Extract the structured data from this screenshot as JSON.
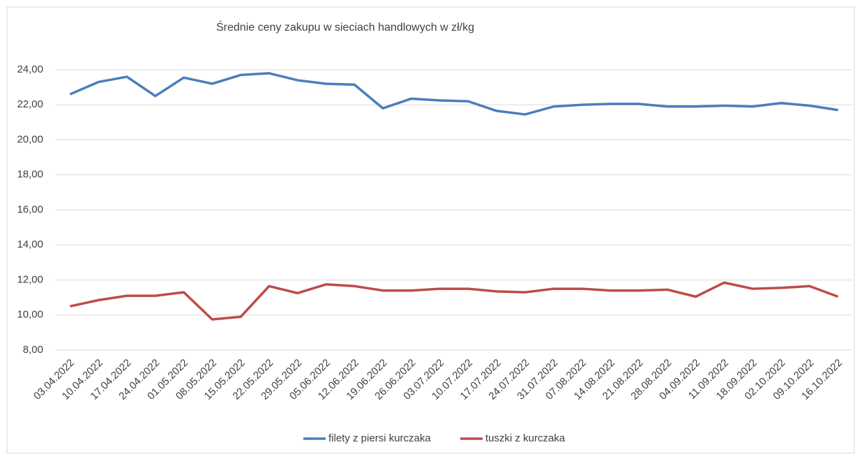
{
  "chart_data": {
    "type": "line",
    "title": "Średnie ceny zakupu w sieciach handlowych w zł/kg",
    "categories": [
      "03.04.2022",
      "10.04.2022",
      "17.04.2022",
      "24.04.2022",
      "01.05.2022",
      "08.05.2022",
      "15.05.2022",
      "22.05.2022",
      "29.05.2022",
      "05.06.2022",
      "12.06.2022",
      "19.06.2022",
      "26.06.2022",
      "03.07.2022",
      "10.07.2022",
      "17.07.2022",
      "24.07.2022",
      "31.07.2022",
      "07.08.2022",
      "14.08.2022",
      "21.08.2022",
      "28.08.2022",
      "04.09.2022",
      "11.09.2022",
      "18.09.2022",
      "02.10.2022",
      "09.10.2022",
      "16.10.2022"
    ],
    "series": [
      {
        "name": "filety z piersi kurczaka",
        "color": "#4a7ebb",
        "values": [
          22.6,
          23.3,
          23.6,
          22.5,
          23.55,
          23.2,
          23.7,
          23.8,
          23.4,
          23.2,
          23.15,
          21.8,
          22.35,
          22.25,
          22.2,
          21.65,
          21.45,
          21.9,
          22.0,
          22.05,
          22.05,
          21.9,
          21.9,
          21.95,
          21.9,
          22.1,
          21.95,
          21.7
        ]
      },
      {
        "name": "tuszki  z kurczaka",
        "color": "#be4b48",
        "values": [
          10.5,
          10.85,
          11.1,
          11.1,
          11.3,
          9.75,
          9.9,
          11.65,
          11.25,
          11.75,
          11.65,
          11.4,
          11.4,
          11.5,
          11.5,
          11.35,
          11.3,
          11.5,
          11.5,
          11.4,
          11.4,
          11.45,
          11.05,
          11.85,
          11.5,
          11.55,
          11.65,
          11.05
        ]
      }
    ],
    "ylim": [
      8,
      24
    ],
    "yticks": [
      {
        "value": 8,
        "label": "8,00"
      },
      {
        "value": 10,
        "label": "10,00"
      },
      {
        "value": 12,
        "label": "12,00"
      },
      {
        "value": 14,
        "label": "14,00"
      },
      {
        "value": 16,
        "label": "16,00"
      },
      {
        "value": 18,
        "label": "18,00"
      },
      {
        "value": 20,
        "label": "20,00"
      },
      {
        "value": 22,
        "label": "22,00"
      },
      {
        "value": 24,
        "label": "24,00"
      }
    ],
    "grid": true,
    "legend": "bottom"
  }
}
